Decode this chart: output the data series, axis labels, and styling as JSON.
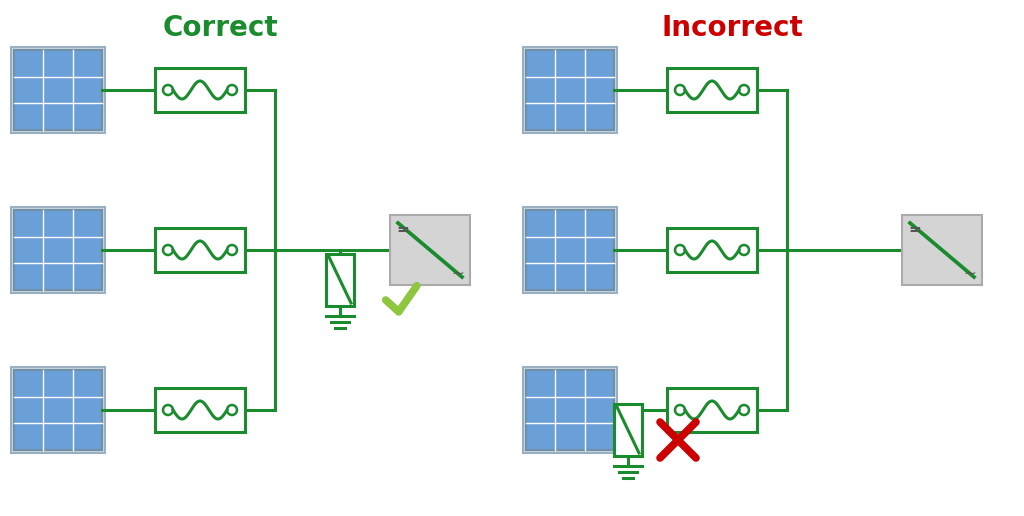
{
  "title_correct": "Correct",
  "title_incorrect": "Incorrect",
  "title_correct_color": "#1a8c2e",
  "title_incorrect_color": "#cc0000",
  "line_color": "#1a8c2e",
  "panel_fill": "#6a9fd8",
  "panel_grid": "#ffffff",
  "panel_border": "#8aaacc",
  "background": "#ffffff",
  "check_color": "#8dc63f",
  "cross_color": "#cc0000",
  "inverter_fill": "#d4d4d4",
  "inverter_border": "#aaaaaa",
  "line_width": 2.2,
  "spd_color": "#1a8c2e"
}
